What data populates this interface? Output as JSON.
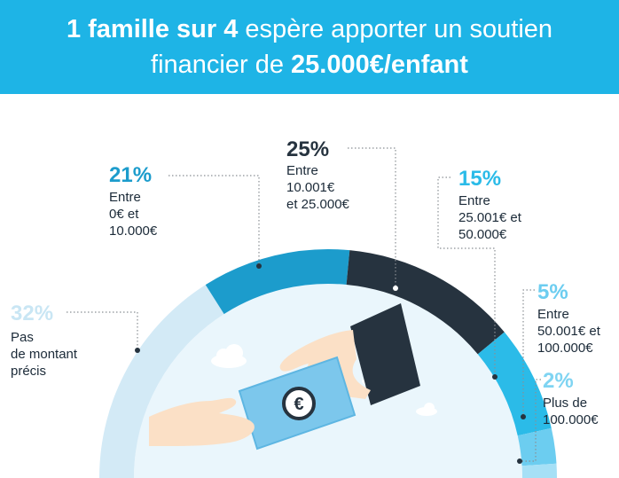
{
  "header": {
    "line1_bold": "1 famille sur 4",
    "line1_rest": " espère apporter un soutien",
    "line2_rest": "financier de ",
    "line2_bold": "25.000€/enfant"
  },
  "chart_data": {
    "type": "pie",
    "slices": [
      {
        "value": 32,
        "pct_label": "32%",
        "desc": [
          "Pas",
          "de montant",
          "précis"
        ],
        "color": "#d3eaf6",
        "pct_color": "#c9e6f4"
      },
      {
        "value": 21,
        "pct_label": "21%",
        "desc": [
          "Entre",
          "0€ et",
          "10.000€"
        ],
        "color": "#1c9ccc",
        "pct_color": "#1c9ccc"
      },
      {
        "value": 25,
        "pct_label": "25%",
        "desc": [
          "Entre",
          "10.001€",
          "et 25.000€"
        ],
        "color": "#26333f",
        "pct_color": "#26333f"
      },
      {
        "value": 15,
        "pct_label": "15%",
        "desc": [
          "Entre",
          "25.001€ et",
          "50.000€"
        ],
        "color": "#2bbbe8",
        "pct_color": "#2bbbe8"
      },
      {
        "value": 5,
        "pct_label": "5%",
        "desc": [
          "Entre",
          "50.001€ et",
          "100.000€"
        ],
        "color": "#6ccdf0",
        "pct_color": "#6ccdf0"
      },
      {
        "value": 2,
        "pct_label": "2%",
        "desc": [
          "Plus de",
          "100.000€"
        ],
        "color": "#a6e0f6",
        "pct_color": "#7fd4f2"
      }
    ]
  },
  "colors": {
    "header_bg": "#1eb4e6",
    "text_dark": "#1b2a38",
    "sky": "#eaf6fc",
    "banknote": "#7cc7ec",
    "sleeve": "#26333f",
    "skin": "#fbe0c6"
  },
  "illustration": {
    "banknote_icon": "euro-coin-icon"
  }
}
